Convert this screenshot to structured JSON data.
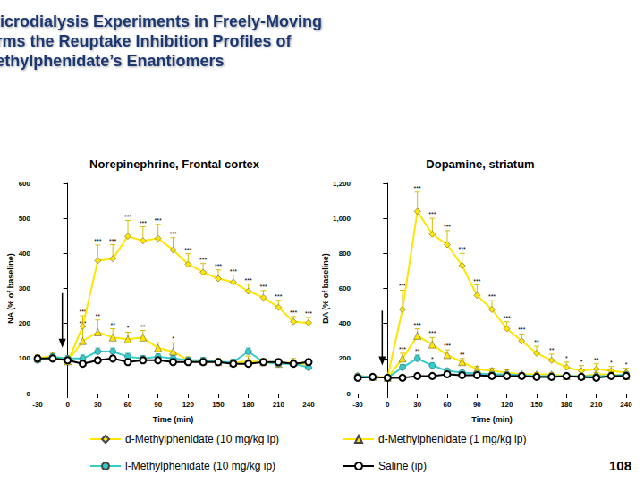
{
  "title": [
    "Intracerebral Microdialysis Experiments in Freely-Moving",
    "Rats Confirms the Reuptake Inhibition Profiles of",
    "Methylphenidate’s Enantiomers"
  ],
  "page_number": "108",
  "chart_data": [
    {
      "type": "line",
      "title": "Norepinephrine, Frontal cortex",
      "x_label": "Time (min)",
      "y_label": "NA (% of baseline)",
      "x": [
        -30,
        -15,
        0,
        15,
        30,
        45,
        60,
        75,
        90,
        105,
        120,
        135,
        150,
        165,
        180,
        195,
        210,
        225,
        240
      ],
      "xlim": [
        -30,
        240
      ],
      "xticks": [
        -30,
        0,
        30,
        60,
        90,
        120,
        150,
        180,
        210,
        240
      ],
      "ylim": [
        0,
        600
      ],
      "yticks": [
        0,
        100,
        200,
        300,
        400,
        500,
        600
      ],
      "grid": false,
      "series": [
        {
          "name": "d-Methylphenidate (10 mg/kg ip)",
          "color": "#ffe600",
          "marker": "diamond",
          "values": [
            100,
            108,
            90,
            192,
            379,
            385,
            449,
            436,
            443,
            410,
            369,
            346,
            328,
            318,
            292,
            274,
            246,
            205,
            202
          ],
          "errors": [
            10,
            10,
            8,
            30,
            45,
            40,
            45,
            40,
            40,
            35,
            30,
            25,
            25,
            20,
            20,
            20,
            20,
            15,
            15
          ],
          "significance": [
            null,
            null,
            null,
            "***",
            "***",
            "***",
            "***",
            "***",
            "***",
            "***",
            "***",
            "***",
            "***",
            "***",
            "***",
            "***",
            "***",
            "***",
            "***"
          ]
        },
        {
          "name": "d-Methylphenidate (1 mg/kg ip)",
          "color": "#ffe600",
          "marker": "triangle",
          "values": [
            100,
            105,
            92,
            150,
            175,
            160,
            155,
            160,
            130,
            120,
            95,
            92,
            90,
            88,
            92,
            90,
            85,
            90,
            80
          ],
          "errors": [
            10,
            10,
            8,
            40,
            35,
            25,
            20,
            20,
            15,
            25,
            10,
            10,
            10,
            10,
            15,
            10,
            10,
            10,
            10
          ],
          "significance": [
            null,
            null,
            null,
            "***",
            "**",
            "**",
            "*",
            "**",
            null,
            "*",
            null,
            null,
            null,
            null,
            null,
            null,
            null,
            null,
            null
          ]
        },
        {
          "name": "l-Methylphenidate (10 mg/kg ip)",
          "color": "#33cccc",
          "marker": "circle",
          "values": [
            95,
            105,
            100,
            100,
            120,
            120,
            105,
            100,
            105,
            100,
            95,
            95,
            90,
            90,
            120,
            90,
            85,
            85,
            75
          ],
          "errors": [
            8,
            8,
            8,
            10,
            10,
            10,
            10,
            8,
            8,
            8,
            8,
            8,
            8,
            8,
            10,
            8,
            8,
            8,
            8
          ],
          "significance": [
            null,
            null,
            null,
            null,
            null,
            null,
            null,
            null,
            null,
            null,
            null,
            null,
            null,
            null,
            null,
            null,
            null,
            null,
            null
          ]
        },
        {
          "name": "Saline (ip)",
          "color": "#000000",
          "marker": "open_circle",
          "values": [
            100,
            100,
            95,
            85,
            95,
            100,
            90,
            95,
            95,
            90,
            90,
            90,
            90,
            85,
            85,
            90,
            90,
            85,
            90
          ],
          "errors": [
            8,
            8,
            8,
            8,
            8,
            8,
            8,
            8,
            8,
            8,
            8,
            8,
            8,
            8,
            8,
            8,
            8,
            8,
            8
          ],
          "significance": [
            null,
            null,
            null,
            null,
            null,
            null,
            null,
            null,
            null,
            null,
            null,
            null,
            null,
            null,
            null,
            null,
            null,
            null,
            null
          ]
        }
      ]
    },
    {
      "type": "line",
      "title": "Dopamine, striatum",
      "x_label": "Time (min)",
      "y_label": "DA (% of baseline)",
      "x": [
        -30,
        -15,
        0,
        15,
        30,
        45,
        60,
        75,
        90,
        105,
        120,
        135,
        150,
        165,
        180,
        195,
        210,
        225,
        240
      ],
      "xlim": [
        -30,
        240
      ],
      "xticks": [
        -30,
        0,
        30,
        60,
        90,
        120,
        150,
        180,
        210,
        240
      ],
      "ylim": [
        0,
        1200
      ],
      "yticks": [
        0,
        200,
        400,
        600,
        800,
        1000,
        1200
      ],
      "grid": false,
      "series": [
        {
          "name": "d-Methylphenidate (10 mg/kg ip)",
          "color": "#ffe600",
          "marker": "diamond",
          "values": [
            100,
            95,
            95,
            480,
            1040,
            910,
            850,
            730,
            560,
            480,
            370,
            300,
            230,
            190,
            150,
            130,
            140,
            130,
            120
          ],
          "errors": [
            15,
            10,
            10,
            110,
            110,
            90,
            80,
            70,
            60,
            50,
            40,
            40,
            40,
            35,
            30,
            30,
            30,
            25,
            25
          ],
          "significance": [
            null,
            null,
            null,
            "***",
            "***",
            "***",
            "***",
            "***",
            "***",
            "***",
            "***",
            "***",
            "**",
            "**",
            "*",
            "*",
            "**",
            "*",
            "*"
          ]
        },
        {
          "name": "d-Methylphenidate (1 mg/kg ip)",
          "color": "#ffe600",
          "marker": "triangle",
          "values": [
            100,
            95,
            90,
            200,
            330,
            280,
            220,
            180,
            140,
            130,
            120,
            110,
            110,
            110,
            100,
            100,
            110,
            110,
            100
          ],
          "errors": [
            10,
            10,
            10,
            30,
            40,
            40,
            30,
            20,
            15,
            15,
            15,
            10,
            10,
            10,
            10,
            10,
            10,
            10,
            10
          ],
          "significance": [
            null,
            null,
            null,
            "***",
            "***",
            "***",
            "***",
            "**",
            null,
            null,
            null,
            null,
            null,
            null,
            null,
            null,
            null,
            null,
            null
          ]
        },
        {
          "name": "l-Methylphenidate (10 mg/kg ip)",
          "color": "#33cccc",
          "marker": "circle",
          "values": [
            100,
            95,
            90,
            150,
            200,
            160,
            130,
            120,
            115,
            110,
            110,
            105,
            100,
            100,
            100,
            100,
            100,
            100,
            110
          ],
          "errors": [
            10,
            10,
            10,
            15,
            20,
            15,
            10,
            10,
            10,
            10,
            10,
            10,
            10,
            10,
            10,
            10,
            10,
            10,
            10
          ],
          "significance": [
            null,
            null,
            null,
            "*",
            "**",
            "*",
            null,
            null,
            null,
            null,
            null,
            null,
            null,
            null,
            null,
            null,
            null,
            null,
            null
          ]
        },
        {
          "name": "Saline (ip)",
          "color": "#000000",
          "marker": "open_circle",
          "values": [
            90,
            95,
            90,
            90,
            100,
            100,
            110,
            105,
            105,
            100,
            100,
            100,
            95,
            95,
            100,
            95,
            90,
            100,
            100
          ],
          "errors": [
            10,
            10,
            10,
            10,
            10,
            10,
            10,
            10,
            10,
            10,
            10,
            10,
            10,
            10,
            10,
            10,
            10,
            10,
            10
          ],
          "significance": [
            null,
            null,
            null,
            null,
            null,
            null,
            null,
            null,
            null,
            null,
            null,
            null,
            null,
            null,
            null,
            null,
            null,
            null,
            null
          ]
        }
      ]
    }
  ]
}
